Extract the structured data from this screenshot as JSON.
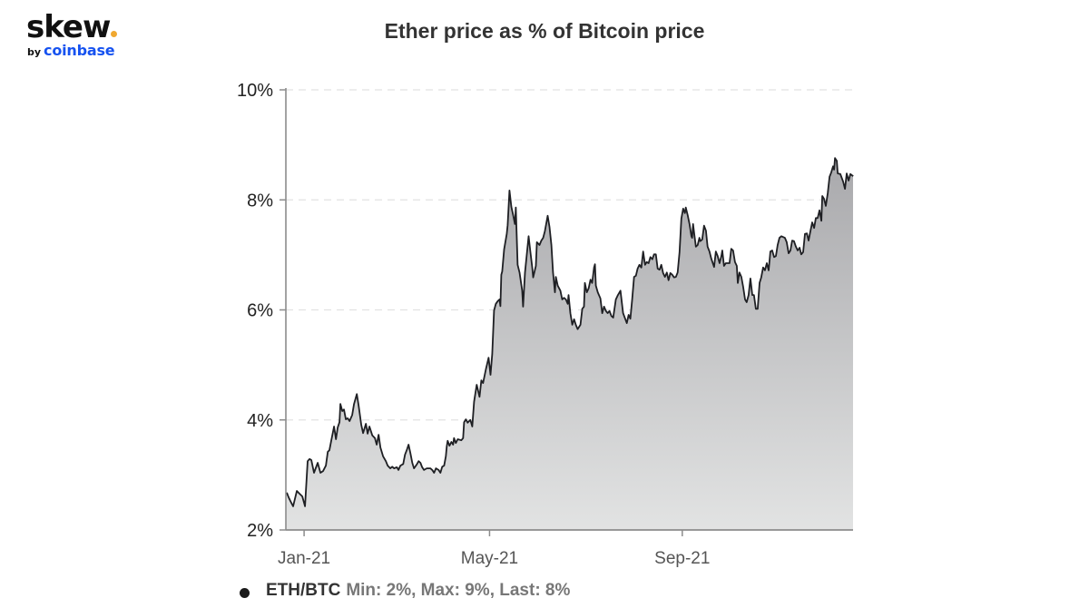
{
  "branding": {
    "logo_text": "skew",
    "logo_dot_color": "#f0a830",
    "by_text": "by",
    "brand_text": "coinbase",
    "brand_color": "#1652f0"
  },
  "chart_data": {
    "type": "area",
    "title": "Ether price as % of Bitcoin price",
    "xlabel": "",
    "ylabel": "",
    "ylim": [
      2,
      10
    ],
    "y_ticks": [
      {
        "value": 10,
        "label": "10%"
      },
      {
        "value": 8,
        "label": "8%"
      },
      {
        "value": 6,
        "label": "6%"
      },
      {
        "value": 4,
        "label": "4%"
      },
      {
        "value": 2,
        "label": "2%"
      }
    ],
    "x_axis": {
      "unit": "days since 2020-12-20",
      "range": [
        0,
        367
      ],
      "ticks": [
        {
          "day": 11.8,
          "label": "Jan-21"
        },
        {
          "day": 131.8,
          "label": "May-21"
        },
        {
          "day": 256.5,
          "label": "Sep-21"
        }
      ]
    },
    "grid": {
      "horizontal": true,
      "style": "dashed",
      "color": "#e2e2e2"
    },
    "legend_position": "bottom-left",
    "colors": {
      "line": "#1e1f23",
      "fill_top": "#a9a9ac",
      "fill_bottom": "#e2e3e3",
      "axis": "#8c8c8c"
    },
    "series": [
      {
        "name": "ETH/BTC",
        "summary": "Min: 2%, Max: 9%, Last: 8%",
        "x": [
          0.6,
          1.8,
          2.9,
          4.7,
          7.1,
          8.8,
          10.6,
          12.4,
          14.1,
          15.3,
          16.5,
          18.2,
          20.6,
          22.4,
          24.1,
          25.9,
          27.1,
          28.2,
          29.4,
          31.2,
          32.4,
          33.5,
          34.7,
          35.3,
          36.5,
          37.6,
          38.8,
          40.0,
          41.2,
          42.9,
          44.1,
          45.9,
          47.1,
          48.8,
          50.0,
          51.8,
          52.9,
          54.1,
          55.9,
          57.6,
          58.8,
          60.0,
          61.2,
          62.9,
          64.7,
          65.9,
          67.6,
          68.8,
          70.0,
          71.8,
          72.9,
          74.1,
          75.9,
          77.1,
          78.2,
          79.4,
          80.6,
          81.8,
          82.9,
          84.7,
          85.9,
          87.1,
          88.2,
          89.4,
          91.2,
          93.5,
          94.7,
          95.9,
          97.1,
          98.8,
          100.0,
          101.2,
          102.4,
          103.5,
          104.1,
          104.7,
          105.9,
          107.1,
          108.2,
          108.8,
          110.0,
          111.2,
          113.5,
          114.7,
          115.3,
          116.5,
          117.6,
          119.4,
          120.6,
          121.8,
          123.5,
          125.3,
          126.5,
          127.6,
          129.4,
          131.2,
          132.4,
          133.5,
          134.7,
          135.9,
          137.1,
          138.2,
          138.8,
          139.4,
          140.0,
          141.2,
          142.9,
          143.5,
          144.7,
          145.9,
          147.1,
          148.2,
          148.8,
          150.0,
          151.2,
          152.9,
          153.5,
          154.7,
          155.9,
          157.1,
          158.2,
          159.4,
          160.0,
          161.8,
          162.4,
          164.1,
          165.3,
          166.5,
          167.6,
          169.4,
          170.6,
          171.8,
          172.9,
          174.1,
          174.7,
          175.9,
          177.6,
          178.8,
          180.0,
          181.2,
          182.4,
          182.9,
          184.1,
          185.3,
          186.5,
          187.6,
          188.8,
          190.6,
          191.8,
          192.9,
          193.5,
          194.7,
          195.9,
          197.1,
          198.2,
          199.4,
          200.0,
          200.6,
          201.8,
          203.5,
          204.7,
          205.9,
          207.1,
          208.2,
          209.4,
          210.6,
          211.8,
          213.5,
          214.7,
          216.5,
          218.2,
          220.6,
          221.8,
          222.9,
          224.1,
          225.3,
          226.5,
          227.6,
          228.8,
          230.0,
          231.2,
          232.4,
          233.5,
          234.7,
          235.9,
          237.1,
          238.2,
          239.4,
          240.6,
          241.8,
          242.9,
          244.1,
          245.3,
          246.5,
          247.6,
          248.8,
          250.0,
          251.2,
          252.4,
          253.5,
          254.7,
          255.9,
          257.1,
          258.2,
          258.8,
          260.0,
          261.2,
          262.4,
          262.9,
          263.5,
          264.1,
          265.3,
          266.5,
          267.6,
          268.2,
          269.4,
          270.6,
          271.8,
          272.9,
          274.1,
          275.3,
          277.1,
          278.2,
          279.4,
          280.6,
          281.8,
          282.4,
          283.5,
          284.7,
          287.1,
          288.2,
          289.4,
          290.6,
          291.8,
          292.4,
          293.5,
          294.7,
          295.9,
          297.1,
          298.2,
          299.4,
          300.6,
          301.8,
          302.9,
          304.1,
          305.3,
          306.5,
          307.6,
          308.8,
          310.0,
          311.2,
          312.4,
          313.5,
          314.7,
          315.9,
          317.1,
          318.2,
          319.4,
          320.6,
          322.9,
          324.1,
          325.3,
          326.5,
          327.6,
          328.8,
          330.0,
          331.2,
          332.4,
          333.5,
          334.7,
          335.9,
          337.1,
          338.2,
          339.4,
          340.6,
          341.8,
          342.9,
          344.1,
          345.3,
          346.5,
          347.1,
          348.2,
          349.4,
          350.6,
          351.8,
          352.9,
          354.1,
          354.7,
          355.3,
          356.5,
          357.1,
          358.8,
          360.6,
          361.8,
          362.9,
          364.1,
          365.3,
          367.1
        ],
        "values": [
          2.68,
          2.59,
          2.53,
          2.43,
          2.71,
          2.66,
          2.61,
          2.43,
          3.25,
          3.29,
          3.27,
          3.04,
          3.22,
          3.04,
          3.07,
          3.17,
          3.42,
          3.45,
          3.63,
          3.88,
          3.65,
          3.86,
          3.96,
          4.29,
          4.16,
          4.19,
          4.01,
          4.03,
          3.98,
          4.09,
          4.29,
          4.47,
          4.26,
          3.91,
          3.76,
          3.93,
          3.75,
          3.88,
          3.72,
          3.67,
          3.55,
          3.73,
          3.5,
          3.34,
          3.25,
          3.17,
          3.12,
          3.15,
          3.12,
          3.14,
          3.09,
          3.17,
          3.2,
          3.37,
          3.45,
          3.55,
          3.39,
          3.22,
          3.12,
          3.19,
          3.25,
          3.22,
          3.14,
          3.09,
          3.12,
          3.12,
          3.09,
          3.04,
          3.12,
          3.09,
          3.04,
          3.15,
          3.17,
          3.34,
          3.52,
          3.62,
          3.53,
          3.6,
          3.55,
          3.67,
          3.58,
          3.65,
          3.63,
          3.67,
          3.96,
          4.01,
          3.95,
          4.0,
          3.88,
          4.33,
          4.64,
          4.42,
          4.72,
          4.67,
          4.92,
          5.13,
          4.82,
          5.2,
          5.99,
          6.11,
          6.16,
          6.19,
          6.07,
          6.64,
          6.7,
          7.1,
          7.38,
          7.54,
          8.17,
          7.87,
          7.72,
          7.56,
          7.86,
          6.82,
          6.68,
          6.35,
          6.06,
          6.68,
          7.01,
          7.34,
          7.06,
          6.77,
          6.59,
          6.8,
          7.23,
          7.18,
          7.26,
          7.31,
          7.43,
          7.71,
          7.51,
          7.18,
          6.68,
          6.32,
          6.6,
          6.44,
          6.35,
          6.19,
          6.22,
          6.19,
          6.11,
          6.27,
          5.94,
          5.73,
          5.83,
          5.73,
          5.65,
          5.73,
          6.02,
          6.06,
          6.49,
          6.32,
          6.39,
          6.55,
          6.49,
          6.77,
          6.83,
          6.44,
          6.32,
          6.21,
          5.94,
          6.06,
          5.98,
          5.94,
          5.98,
          5.89,
          5.86,
          6.19,
          6.26,
          6.35,
          5.94,
          5.76,
          5.91,
          5.84,
          6.19,
          6.6,
          6.62,
          6.75,
          6.82,
          6.77,
          7.06,
          6.82,
          6.87,
          6.85,
          6.96,
          6.92,
          7.01,
          7.01,
          6.75,
          6.73,
          6.82,
          6.67,
          6.6,
          6.68,
          6.54,
          6.67,
          6.64,
          6.59,
          6.6,
          6.68,
          7.05,
          7.66,
          7.84,
          7.76,
          7.86,
          7.72,
          7.56,
          7.34,
          7.31,
          7.56,
          7.41,
          7.15,
          7.18,
          7.31,
          7.25,
          7.28,
          7.53,
          7.44,
          7.15,
          7.06,
          6.93,
          6.78,
          7.06,
          6.98,
          6.85,
          6.98,
          7.08,
          6.8,
          6.85,
          6.85,
          7.11,
          7.08,
          6.87,
          6.8,
          6.49,
          6.68,
          6.6,
          6.42,
          6.19,
          6.14,
          6.27,
          6.57,
          6.27,
          6.27,
          6.02,
          6.02,
          6.49,
          6.59,
          6.77,
          6.72,
          6.85,
          6.72,
          7.06,
          7.08,
          6.96,
          6.98,
          7.18,
          7.31,
          7.34,
          7.31,
          7.23,
          7.03,
          7.08,
          7.26,
          7.25,
          7.15,
          7.08,
          7.13,
          7.01,
          7.05,
          7.38,
          7.39,
          7.26,
          7.43,
          7.59,
          7.49,
          7.67,
          7.67,
          7.81,
          7.62,
          8.07,
          8.02,
          7.89,
          8.12,
          8.42,
          8.5,
          8.61,
          8.55,
          8.76,
          8.71,
          8.48,
          8.47,
          8.33,
          8.2,
          8.48,
          8.35,
          8.47,
          8.43
        ]
      }
    ]
  },
  "legend": {
    "series_name": "ETH/BTC",
    "stats": "Min: 2%, Max: 9%, Last: 8%"
  }
}
